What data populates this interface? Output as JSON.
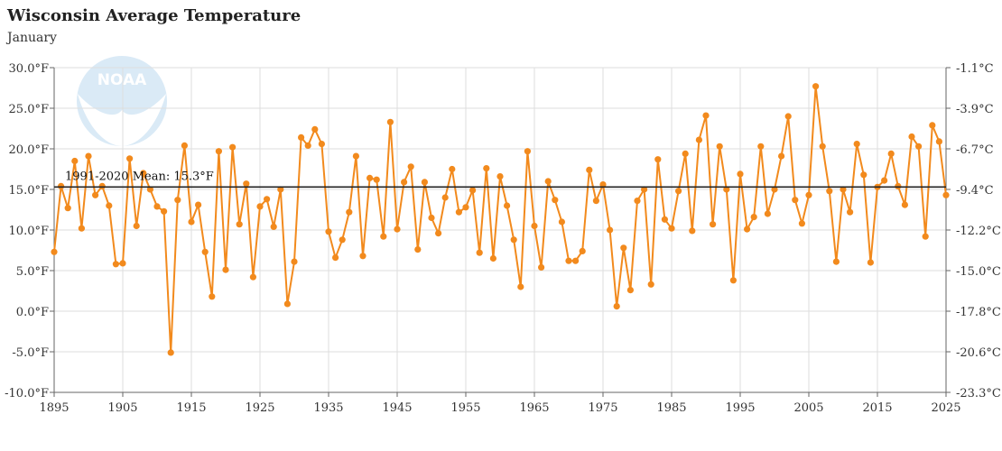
{
  "header": {
    "title": "Wisconsin Average Temperature",
    "subtitle": "January"
  },
  "logo": {
    "text": "NOAA"
  },
  "colors": {
    "series": "#f28a1d",
    "mean_line": "#222222",
    "grid": "#dddddd",
    "logo": "#cfe4f5"
  },
  "chart_data": {
    "type": "line",
    "title": "Wisconsin Average Temperature",
    "subtitle": "January",
    "xlim": [
      1895,
      2025
    ],
    "ylim": [
      -10,
      30
    ],
    "x_ticks": [
      1895,
      1905,
      1915,
      1925,
      1935,
      1945,
      1955,
      1965,
      1975,
      1985,
      1995,
      2005,
      2015,
      2025
    ],
    "y_ticks": [
      -10,
      -5,
      0,
      5,
      10,
      15,
      20,
      25,
      30
    ],
    "y_tick_labels": [
      "-10.0°F",
      "-5.0°F",
      "0.0°F",
      "5.0°F",
      "10.0°F",
      "15.0°F",
      "20.0°F",
      "25.0°F",
      "30.0°F"
    ],
    "y2_tick_labels": [
      "-23.3°C",
      "-20.6°C",
      "-17.8°C",
      "-15.0°C",
      "-12.2°C",
      "-9.4°C",
      "-6.7°C",
      "-3.9°C",
      "-1.1°C"
    ],
    "grid": true,
    "mean": {
      "value": 15.3,
      "label": "1991-2020 Mean: 15.3°F"
    },
    "series": [
      {
        "x": [
          1895,
          1896,
          1897,
          1898,
          1899,
          1900,
          1901,
          1902,
          1903,
          1904,
          1905,
          1906,
          1907,
          1908,
          1909,
          1910,
          1911,
          1912,
          1913,
          1914,
          1915,
          1916,
          1917,
          1918,
          1919,
          1920,
          1921,
          1922,
          1923,
          1924,
          1925,
          1926,
          1927,
          1928,
          1929,
          1930,
          1931,
          1932,
          1933,
          1934,
          1935,
          1936,
          1937,
          1938,
          1939,
          1940,
          1941,
          1942,
          1943,
          1944,
          1945,
          1946,
          1947,
          1948,
          1949,
          1950,
          1951,
          1952,
          1953,
          1954,
          1955,
          1956,
          1957,
          1958,
          1959,
          1960,
          1961,
          1962,
          1963,
          1964,
          1965,
          1966,
          1967,
          1968,
          1969,
          1970,
          1971,
          1972,
          1973,
          1974,
          1975,
          1976,
          1977,
          1978,
          1979,
          1980,
          1981,
          1982,
          1983,
          1984,
          1985,
          1986,
          1987,
          1988,
          1989,
          1990,
          1991,
          1992,
          1993,
          1994,
          1995,
          1996,
          1997,
          1998,
          1999,
          2000,
          2001,
          2002,
          2003,
          2004,
          2005,
          2006,
          2007,
          2008,
          2009,
          2010,
          2011,
          2012,
          2013,
          2014,
          2015,
          2016,
          2017,
          2018,
          2019,
          2020,
          2021,
          2022,
          2023,
          2024,
          2025
        ],
        "values": [
          7.3,
          15.4,
          12.7,
          18.5,
          10.2,
          19.1,
          14.3,
          15.4,
          13.0,
          5.8,
          5.9,
          18.8,
          10.5,
          17.0,
          15.0,
          12.9,
          12.3,
          -5.1,
          13.7,
          20.4,
          11.0,
          13.1,
          7.3,
          1.8,
          19.7,
          5.1,
          20.2,
          10.7,
          15.7,
          4.2,
          12.9,
          13.8,
          10.4,
          15.0,
          0.9,
          6.1,
          21.4,
          20.4,
          22.4,
          20.6,
          9.8,
          6.6,
          8.8,
          12.2,
          19.1,
          6.8,
          16.4,
          16.2,
          9.2,
          23.3,
          10.1,
          15.9,
          17.8,
          7.6,
          15.9,
          11.5,
          9.6,
          14.0,
          17.5,
          12.2,
          12.8,
          14.9,
          7.2,
          17.6,
          6.5,
          16.6,
          13.0,
          8.8,
          3.0,
          19.7,
          10.5,
          5.4,
          16.0,
          13.7,
          11.0,
          6.2,
          6.2,
          7.4,
          17.4,
          13.6,
          15.6,
          10.0,
          0.6,
          7.8,
          2.6,
          13.6,
          15.0,
          3.3,
          18.7,
          11.3,
          10.2,
          14.8,
          19.4,
          9.9,
          21.1,
          24.1,
          10.7,
          20.3,
          15.0,
          3.8,
          16.9,
          10.1,
          11.6,
          20.3,
          12.0,
          15.0,
          19.1,
          24.0,
          13.7,
          10.8,
          14.3,
          27.7,
          20.3,
          14.8,
          6.1,
          15.0,
          12.2,
          20.6,
          16.8,
          6.0,
          15.3,
          16.1,
          19.4,
          15.4,
          13.1,
          21.5,
          20.3,
          9.2,
          22.9,
          20.9,
          14.3
        ]
      }
    ]
  }
}
